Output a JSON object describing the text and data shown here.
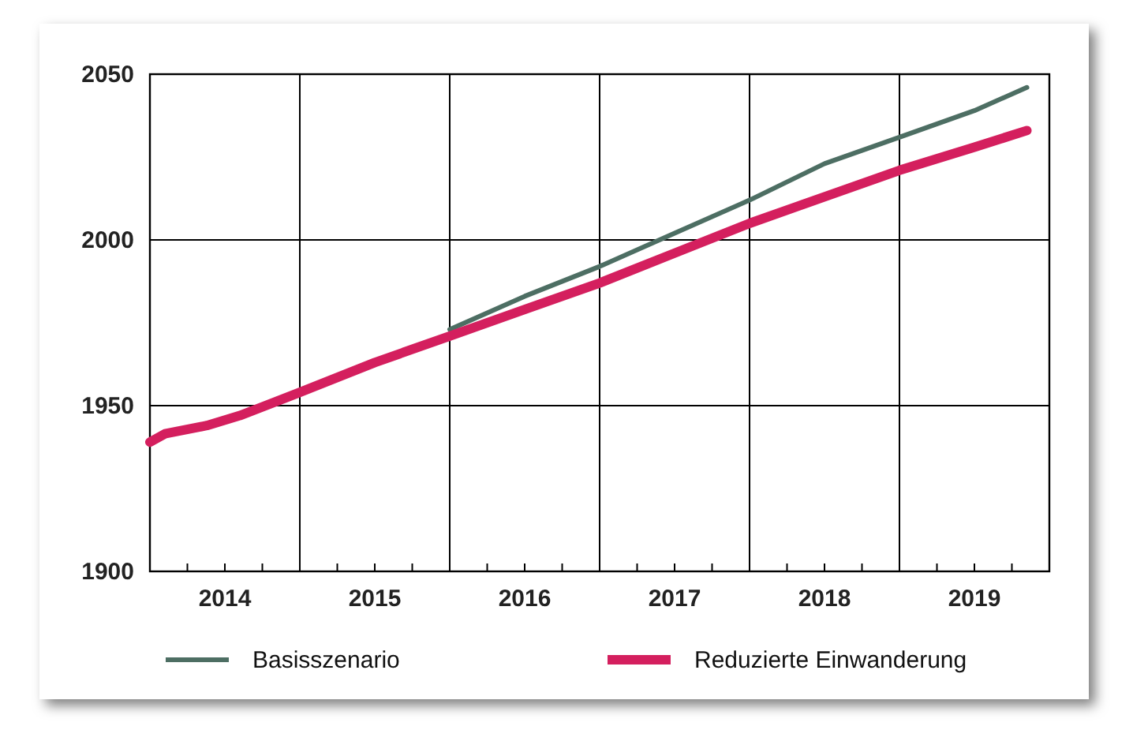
{
  "chart_data": {
    "type": "line",
    "xlim": [
      2014,
      2020
    ],
    "ylim": [
      1900,
      2050
    ],
    "yticks": [
      1900,
      1950,
      2000,
      2050
    ],
    "xticks": [
      {
        "value": 2014,
        "label": null
      },
      {
        "value": 2014.25,
        "label": null
      },
      {
        "value": 2014.5,
        "label": "2014"
      },
      {
        "value": 2014.75,
        "label": null
      },
      {
        "value": 2015,
        "label": null
      },
      {
        "value": 2015.25,
        "label": null
      },
      {
        "value": 2015.5,
        "label": "2015"
      },
      {
        "value": 2015.75,
        "label": null
      },
      {
        "value": 2016,
        "label": null
      },
      {
        "value": 2016.25,
        "label": null
      },
      {
        "value": 2016.5,
        "label": "2016"
      },
      {
        "value": 2016.75,
        "label": null
      },
      {
        "value": 2017,
        "label": null
      },
      {
        "value": 2017.25,
        "label": null
      },
      {
        "value": 2017.5,
        "label": "2017"
      },
      {
        "value": 2017.75,
        "label": null
      },
      {
        "value": 2018,
        "label": null
      },
      {
        "value": 2018.25,
        "label": null
      },
      {
        "value": 2018.5,
        "label": "2018"
      },
      {
        "value": 2018.75,
        "label": null
      },
      {
        "value": 2019,
        "label": null
      },
      {
        "value": 2019.25,
        "label": null
      },
      {
        "value": 2019.5,
        "label": "2019"
      },
      {
        "value": 2019.75,
        "label": null
      },
      {
        "value": 2020,
        "label": null
      }
    ],
    "grid": true,
    "legend": "bottom",
    "series": [
      {
        "name": "Basisszenario",
        "color": "#4d6e63",
        "x": [
          2016,
          2016.5,
          2017,
          2017.5,
          2018,
          2018.5,
          2019,
          2019.5,
          2019.85
        ],
        "values": [
          1973,
          1983,
          1992,
          2002,
          2012,
          2023,
          2031,
          2039,
          2046
        ]
      },
      {
        "name": "Reduzierte Einwanderung",
        "color": "#d41f5e",
        "x": [
          2014,
          2014.1,
          2014.38,
          2014.6,
          2015,
          2015.5,
          2016,
          2016.5,
          2017,
          2017.5,
          2018,
          2018.5,
          2019,
          2019.5,
          2019.85
        ],
        "values": [
          1939,
          1941.5,
          1944,
          1947,
          1954,
          1963,
          1971,
          1979,
          1987,
          1996,
          2005,
          2013,
          2021,
          2028,
          2033
        ]
      }
    ]
  }
}
